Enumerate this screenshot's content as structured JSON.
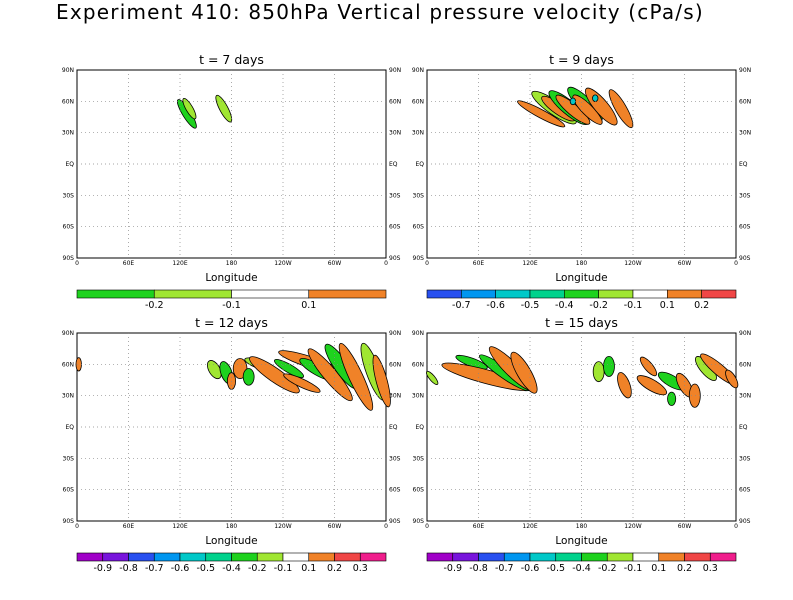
{
  "title": "Experiment 410: 850hPa Vertical pressure velocity (cPa/s)",
  "colors": {
    "-0.9": "#a000c8",
    "-0.8": "#7814dc",
    "-0.7": "#2850f0",
    "-0.6": "#0096f0",
    "-0.5": "#00c8c8",
    "-0.4": "#00d28c",
    "-0.2": "#1ed21e",
    "-0.1": "#a0e632",
    "0": "#ffffff",
    "0.1": "#f08228",
    "0.2": "#f04646",
    "0.3": "#f01e8c"
  },
  "chart_data": [
    {
      "type": "contour-map",
      "title": "t = 7 days",
      "xlabel": "Longitude",
      "xticks": [
        "0",
        "60E",
        "120E",
        "180",
        "120W",
        "60W",
        "0"
      ],
      "yticks": [
        "90N",
        "60N",
        "30N",
        "EQ",
        "30S",
        "60S",
        "90S"
      ],
      "xlim": [
        0,
        360
      ],
      "ylim": [
        -90,
        90
      ],
      "grid": true,
      "colorbar": {
        "labels": [
          "-0.2",
          "-0.1",
          "0.1"
        ],
        "colors": [
          "#1ed21e",
          "#a0e632",
          "#ffffff",
          "#f08228"
        ]
      },
      "blobs": [
        {
          "lon": 128,
          "lat": 48,
          "rx": 3,
          "ry": 10,
          "rot": -32,
          "color": "#1ed21e"
        },
        {
          "lon": 131,
          "lat": 53,
          "rx": 2.5,
          "ry": 7,
          "rot": -30,
          "color": "#a0e632"
        },
        {
          "lon": 171,
          "lat": 53,
          "rx": 3,
          "ry": 9,
          "rot": -28,
          "color": "#a0e632"
        }
      ]
    },
    {
      "type": "contour-map",
      "title": "t = 9 days",
      "xlabel": "Longitude",
      "xticks": [
        "0",
        "60E",
        "120E",
        "180",
        "120W",
        "60W",
        "0"
      ],
      "yticks": [
        "90N",
        "60N",
        "30N",
        "EQ",
        "30S",
        "60S",
        "90S"
      ],
      "xlim": [
        0,
        360
      ],
      "ylim": [
        -90,
        90
      ],
      "grid": true,
      "colorbar": {
        "labels": [
          "-0.7",
          "-0.6",
          "-0.5",
          "-0.4",
          "-0.2",
          "-0.1",
          "0.1",
          "0.2"
        ],
        "colors": [
          "#2850f0",
          "#0096f0",
          "#00c8c8",
          "#00d28c",
          "#1ed21e",
          "#a0e632",
          "#ffffff",
          "#f08228",
          "#f04646"
        ]
      },
      "blobs": [
        {
          "lon": 133,
          "lat": 48,
          "rx": 3,
          "ry": 16,
          "rot": -62,
          "color": "#f08228"
        },
        {
          "lon": 148,
          "lat": 54,
          "rx": 5,
          "ry": 16,
          "rot": -55,
          "color": "#a0e632"
        },
        {
          "lon": 153,
          "lat": 53,
          "rx": 4,
          "ry": 12,
          "rot": -55,
          "color": "#f08228"
        },
        {
          "lon": 165,
          "lat": 54,
          "rx": 5,
          "ry": 15,
          "rot": -50,
          "color": "#1ed21e"
        },
        {
          "lon": 170,
          "lat": 52,
          "rx": 4,
          "ry": 13,
          "rot": -50,
          "color": "#f08228"
        },
        {
          "lon": 184,
          "lat": 57,
          "rx": 5,
          "ry": 14,
          "rot": -45,
          "color": "#1ed21e"
        },
        {
          "lon": 187,
          "lat": 52,
          "rx": 4,
          "ry": 12,
          "rot": -45,
          "color": "#f08228"
        },
        {
          "lon": 203,
          "lat": 55,
          "rx": 5,
          "ry": 14,
          "rot": -40,
          "color": "#f08228"
        },
        {
          "lon": 226,
          "lat": 53,
          "rx": 4,
          "ry": 13,
          "rot": -30,
          "color": "#f08228"
        },
        {
          "lon": 170,
          "lat": 60,
          "rx": 2,
          "ry": 2,
          "rot": 0,
          "color": "#00c8c8"
        },
        {
          "lon": 196,
          "lat": 63,
          "rx": 2,
          "ry": 2,
          "rot": 0,
          "color": "#00c8c8"
        }
      ]
    },
    {
      "type": "contour-map",
      "title": "t = 12 days",
      "xlabel": "Longitude",
      "xticks": [
        "0",
        "60E",
        "120E",
        "180",
        "120W",
        "60W",
        "0"
      ],
      "yticks": [
        "90N",
        "60N",
        "30N",
        "EQ",
        "30S",
        "60S",
        "90S"
      ],
      "xlim": [
        0,
        360
      ],
      "ylim": [
        -90,
        90
      ],
      "grid": true,
      "colorbar": {
        "labels": [
          "-0.9",
          "-0.8",
          "-0.7",
          "-0.6",
          "-0.5",
          "-0.4",
          "-0.2",
          "-0.1",
          "0.1",
          "0.2",
          "0.3"
        ],
        "colors": [
          "#a000c8",
          "#7814dc",
          "#2850f0",
          "#0096f0",
          "#00c8c8",
          "#00d28c",
          "#1ed21e",
          "#a0e632",
          "#ffffff",
          "#f08228",
          "#f04646",
          "#f01e8c"
        ]
      },
      "blobs": [
        {
          "lon": 160,
          "lat": 55,
          "rx": 4,
          "ry": 6,
          "rot": -30,
          "color": "#a0e632"
        },
        {
          "lon": 174,
          "lat": 52,
          "rx": 4,
          "ry": 7,
          "rot": -20,
          "color": "#1ed21e"
        },
        {
          "lon": 180,
          "lat": 44,
          "rx": 3,
          "ry": 5,
          "rot": 0,
          "color": "#f08228"
        },
        {
          "lon": 190,
          "lat": 56,
          "rx": 5,
          "ry": 6,
          "rot": 0,
          "color": "#f08228"
        },
        {
          "lon": 200,
          "lat": 48,
          "rx": 4,
          "ry": 5,
          "rot": 0,
          "color": "#1ed21e"
        },
        {
          "lon": 212,
          "lat": 60,
          "rx": 3,
          "ry": 9,
          "rot": -70,
          "color": "#a0e632"
        },
        {
          "lon": 230,
          "lat": 50,
          "rx": 5,
          "ry": 18,
          "rot": -55,
          "color": "#f08228"
        },
        {
          "lon": 247,
          "lat": 56,
          "rx": 3,
          "ry": 10,
          "rot": -60,
          "color": "#1ed21e"
        },
        {
          "lon": 262,
          "lat": 42,
          "rx": 3,
          "ry": 12,
          "rot": -65,
          "color": "#f08228"
        },
        {
          "lon": 272,
          "lat": 62,
          "rx": 4,
          "ry": 20,
          "rot": -72,
          "color": "#f08228"
        },
        {
          "lon": 280,
          "lat": 55,
          "rx": 4,
          "ry": 12,
          "rot": -60,
          "color": "#1ed21e"
        },
        {
          "lon": 295,
          "lat": 50,
          "rx": 5,
          "ry": 20,
          "rot": -40,
          "color": "#f08228"
        },
        {
          "lon": 308,
          "lat": 58,
          "rx": 5,
          "ry": 16,
          "rot": -35,
          "color": "#1ed21e"
        },
        {
          "lon": 325,
          "lat": 48,
          "rx": 5,
          "ry": 22,
          "rot": -25,
          "color": "#f08228"
        },
        {
          "lon": 345,
          "lat": 53,
          "rx": 5,
          "ry": 18,
          "rot": -20,
          "color": "#a0e632"
        },
        {
          "lon": 355,
          "lat": 44,
          "rx": 4,
          "ry": 16,
          "rot": -15,
          "color": "#f08228"
        },
        {
          "lon": 2,
          "lat": 60,
          "rx": 2,
          "ry": 4,
          "rot": 0,
          "color": "#f08228"
        }
      ]
    },
    {
      "type": "contour-map",
      "title": "t = 15 days",
      "xlabel": "Longitude",
      "xticks": [
        "0",
        "60E",
        "120E",
        "180",
        "120W",
        "60W",
        "0"
      ],
      "yticks": [
        "90N",
        "60N",
        "30N",
        "EQ",
        "30S",
        "60S",
        "90S"
      ],
      "xlim": [
        0,
        360
      ],
      "ylim": [
        -90,
        90
      ],
      "grid": true,
      "colorbar": {
        "labels": [
          "-0.9",
          "-0.8",
          "-0.7",
          "-0.6",
          "-0.5",
          "-0.4",
          "-0.2",
          "-0.1",
          "0.1",
          "0.2",
          "0.3"
        ],
        "colors": [
          "#a000c8",
          "#7814dc",
          "#2850f0",
          "#0096f0",
          "#00c8c8",
          "#00d28c",
          "#1ed21e",
          "#a0e632",
          "#ffffff",
          "#f08228",
          "#f04646",
          "#f01e8c"
        ]
      },
      "blobs": [
        {
          "lon": 6,
          "lat": 47,
          "rx": 2,
          "ry": 5,
          "rot": -40,
          "color": "#a0e632"
        },
        {
          "lon": 52,
          "lat": 62,
          "rx": 3,
          "ry": 10,
          "rot": -70,
          "color": "#1ed21e"
        },
        {
          "lon": 70,
          "lat": 48,
          "rx": 5,
          "ry": 28,
          "rot": -75,
          "color": "#f08228"
        },
        {
          "lon": 90,
          "lat": 52,
          "rx": 4,
          "ry": 18,
          "rot": -55,
          "color": "#1ed21e"
        },
        {
          "lon": 98,
          "lat": 56,
          "rx": 5,
          "ry": 18,
          "rot": -45,
          "color": "#f08228"
        },
        {
          "lon": 113,
          "lat": 52,
          "rx": 5,
          "ry": 14,
          "rot": -30,
          "color": "#f08228"
        },
        {
          "lon": 200,
          "lat": 53,
          "rx": 4,
          "ry": 6,
          "rot": 0,
          "color": "#a0e632"
        },
        {
          "lon": 212,
          "lat": 58,
          "rx": 4,
          "ry": 6,
          "rot": 0,
          "color": "#1ed21e"
        },
        {
          "lon": 230,
          "lat": 40,
          "rx": 4,
          "ry": 8,
          "rot": -20,
          "color": "#f08228"
        },
        {
          "lon": 258,
          "lat": 58,
          "rx": 3,
          "ry": 7,
          "rot": -40,
          "color": "#f08228"
        },
        {
          "lon": 262,
          "lat": 40,
          "rx": 4,
          "ry": 10,
          "rot": -60,
          "color": "#f08228"
        },
        {
          "lon": 285,
          "lat": 44,
          "rx": 4,
          "ry": 9,
          "rot": -60,
          "color": "#1ed21e"
        },
        {
          "lon": 300,
          "lat": 40,
          "rx": 4,
          "ry": 8,
          "rot": -30,
          "color": "#f08228"
        },
        {
          "lon": 312,
          "lat": 30,
          "rx": 4,
          "ry": 7,
          "rot": 0,
          "color": "#f08228"
        },
        {
          "lon": 325,
          "lat": 56,
          "rx": 4,
          "ry": 9,
          "rot": -40,
          "color": "#a0e632"
        },
        {
          "lon": 340,
          "lat": 55,
          "rx": 4,
          "ry": 14,
          "rot": -50,
          "color": "#f08228"
        },
        {
          "lon": 355,
          "lat": 46,
          "rx": 3,
          "ry": 6,
          "rot": -30,
          "color": "#f08228"
        },
        {
          "lon": 285,
          "lat": 27,
          "rx": 3,
          "ry": 4,
          "rot": 0,
          "color": "#1ed21e"
        }
      ]
    }
  ]
}
